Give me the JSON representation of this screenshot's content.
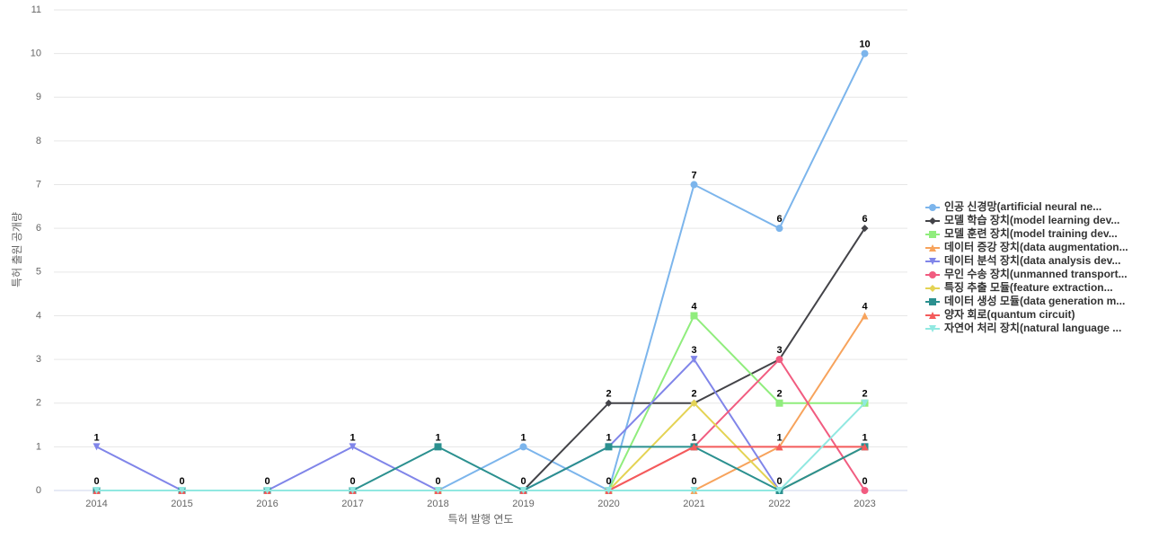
{
  "chart_data": {
    "type": "line",
    "x_label": "특허 발행 연도",
    "y_label": "특허 출원 공개량",
    "categories": [
      "2014",
      "2015",
      "2016",
      "2017",
      "2018",
      "2019",
      "2020",
      "2021",
      "2022",
      "2023"
    ],
    "ylim": [
      0,
      11
    ],
    "yticks": [
      0,
      1,
      2,
      3,
      4,
      5,
      6,
      7,
      8,
      9,
      10,
      11
    ],
    "grid": true,
    "series": [
      {
        "name": "인공 신경망(artificial neural ne...",
        "color": "#7cb5ec",
        "marker": "circle",
        "values": [
          0,
          0,
          0,
          0,
          0,
          1,
          0,
          7,
          6,
          10
        ]
      },
      {
        "name": "모델 학습 장치(model learning dev...",
        "color": "#434348",
        "marker": "diamond",
        "values": [
          0,
          0,
          0,
          0,
          0,
          0,
          2,
          2,
          3,
          6
        ]
      },
      {
        "name": "모델 훈련 장치(model training dev...",
        "color": "#90ed7d",
        "marker": "square",
        "values": [
          0,
          0,
          0,
          0,
          0,
          0,
          0,
          4,
          2,
          2
        ]
      },
      {
        "name": "데이터 증강 장치(data augmentation...",
        "color": "#f7a35c",
        "marker": "triangle",
        "values": [
          0,
          0,
          0,
          0,
          0,
          0,
          0,
          0,
          1,
          4
        ]
      },
      {
        "name": "데이터 분석 장치(data analysis dev...",
        "color": "#8085e9",
        "marker": "triangle-down",
        "values": [
          1,
          0,
          0,
          1,
          0,
          0,
          1,
          3,
          0,
          1
        ]
      },
      {
        "name": "무인 수송 장치(unmanned transport...",
        "color": "#f15c80",
        "marker": "circle",
        "values": [
          0,
          0,
          0,
          0,
          0,
          0,
          0,
          1,
          3,
          0
        ]
      },
      {
        "name": "특징 추출 모듈(feature extraction...",
        "color": "#e4d354",
        "marker": "diamond",
        "values": [
          0,
          0,
          0,
          0,
          0,
          0,
          0,
          2,
          0,
          1
        ]
      },
      {
        "name": "데이터 생성 모듈(data generation m...",
        "color": "#2b908f",
        "marker": "square",
        "values": [
          0,
          0,
          0,
          0,
          1,
          0,
          1,
          1,
          0,
          1
        ]
      },
      {
        "name": "양자 회로(quantum circuit)",
        "color": "#f45b5b",
        "marker": "triangle",
        "values": [
          0,
          0,
          0,
          0,
          0,
          0,
          0,
          1,
          1,
          1
        ]
      },
      {
        "name": "자연어 처리 장치(natural language ...",
        "color": "#91e8e1",
        "marker": "triangle-down",
        "values": [
          0,
          0,
          0,
          0,
          0,
          0,
          0,
          0,
          0,
          2
        ]
      }
    ]
  }
}
